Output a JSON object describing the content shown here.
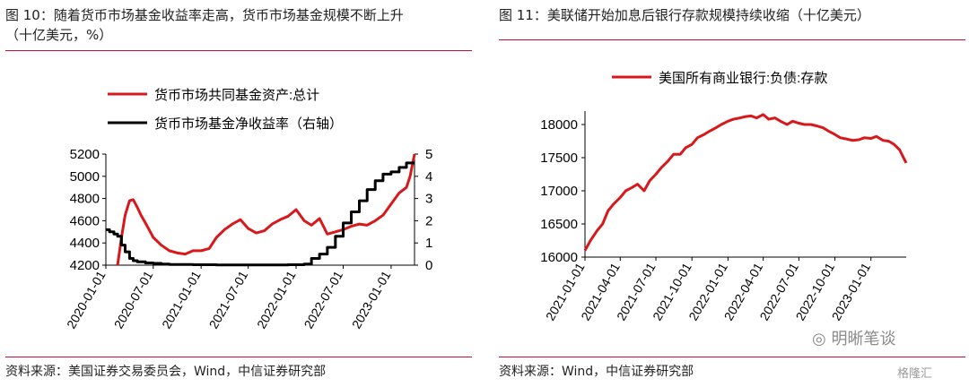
{
  "left": {
    "title_line1": "图 10：随着货币市场基金收益率走高，货币市场基金规模不断上升",
    "title_line2": "（十亿美元，%）",
    "source": "资料来源：美国证券交易委员会，Wind，中信证券研究部"
  },
  "right": {
    "title": "图 11：美联储开始加息后银行存款规模持续收缩（十亿美元）",
    "source": "资料来源：Wind，中信证券研究部"
  },
  "watermark": "明晰笔谈",
  "watermark2": "格隆汇",
  "colors": {
    "red": "#d7191c",
    "black": "#000000",
    "rule": "#c0103a"
  },
  "chart_data": [
    {
      "type": "line",
      "xlabel": "",
      "x_ticks": [
        "2020-01-01",
        "2020-07-01",
        "2021-01-01",
        "2021-07-01",
        "2022-01-01",
        "2022-07-01",
        "2023-01-01"
      ],
      "y_left": {
        "ylim": [
          4200,
          5200
        ],
        "ticks": [
          4200,
          4400,
          4600,
          4800,
          5000,
          5200
        ]
      },
      "y_right": {
        "ylim": [
          0,
          5
        ],
        "ticks": [
          0,
          1,
          2,
          3,
          4,
          5
        ]
      },
      "legend_position": "top-left",
      "series": [
        {
          "name": "货币市场共同基金资产:总计",
          "axis": "left",
          "color": "#d7191c",
          "x": [
            "2020-02-15",
            "2020-03-01",
            "2020-03-15",
            "2020-04-01",
            "2020-04-15",
            "2020-05-01",
            "2020-05-15",
            "2020-06-01",
            "2020-06-15",
            "2020-07-01",
            "2020-08-01",
            "2020-09-01",
            "2020-10-01",
            "2020-11-01",
            "2020-12-01",
            "2021-01-01",
            "2021-02-01",
            "2021-03-01",
            "2021-04-01",
            "2021-05-01",
            "2021-06-01",
            "2021-07-01",
            "2021-08-01",
            "2021-09-01",
            "2021-10-01",
            "2021-11-01",
            "2021-12-01",
            "2022-01-01",
            "2022-02-01",
            "2022-03-01",
            "2022-04-01",
            "2022-05-01",
            "2022-06-01",
            "2022-07-01",
            "2022-08-01",
            "2022-09-01",
            "2022-10-01",
            "2022-11-01",
            "2022-12-01",
            "2023-01-01",
            "2023-02-01",
            "2023-03-01",
            "2023-03-15",
            "2023-04-01"
          ],
          "values": [
            4200,
            4450,
            4650,
            4780,
            4790,
            4720,
            4650,
            4580,
            4520,
            4450,
            4380,
            4330,
            4310,
            4300,
            4330,
            4330,
            4350,
            4450,
            4520,
            4570,
            4610,
            4530,
            4490,
            4510,
            4570,
            4610,
            4640,
            4700,
            4600,
            4560,
            4620,
            4480,
            4500,
            4520,
            4550,
            4570,
            4560,
            4600,
            4650,
            4750,
            4850,
            4900,
            5000,
            5200
          ]
        },
        {
          "name": "货币市场基金净收益率（右轴）",
          "axis": "right",
          "color": "#000000",
          "x": [
            "2020-01-01",
            "2020-01-15",
            "2020-02-01",
            "2020-02-15",
            "2020-03-01",
            "2020-03-15",
            "2020-04-01",
            "2020-04-15",
            "2020-05-01",
            "2020-06-01",
            "2020-07-01",
            "2020-08-01",
            "2020-09-01",
            "2020-12-01",
            "2021-03-01",
            "2021-06-01",
            "2021-09-01",
            "2021-12-01",
            "2022-02-01",
            "2022-03-01",
            "2022-04-01",
            "2022-05-01",
            "2022-06-01",
            "2022-07-01",
            "2022-08-01",
            "2022-09-01",
            "2022-10-01",
            "2022-11-01",
            "2022-12-01",
            "2023-01-01",
            "2023-02-01",
            "2023-03-01",
            "2023-04-01"
          ],
          "values": [
            1.6,
            1.5,
            1.4,
            1.3,
            0.9,
            0.6,
            0.3,
            0.2,
            0.15,
            0.1,
            0.08,
            0.05,
            0.03,
            0.02,
            0.01,
            0.01,
            0.01,
            0.02,
            0.05,
            0.3,
            0.5,
            0.8,
            1.3,
            1.9,
            2.4,
            2.9,
            3.4,
            3.8,
            4.1,
            4.2,
            4.4,
            4.6,
            4.6
          ]
        }
      ]
    },
    {
      "type": "line",
      "xlabel": "",
      "x_ticks": [
        "2021-01-01",
        "2021-04-01",
        "2021-07-01",
        "2021-10-01",
        "2022-01-01",
        "2022-04-01",
        "2022-07-01",
        "2022-10-01",
        "2023-01-01"
      ],
      "ylim": [
        16000,
        18000
      ],
      "y_ticks": [
        16000,
        16500,
        17000,
        17500,
        18000
      ],
      "legend_position": "top-left",
      "series": [
        {
          "name": "美国所有商业银行:负债:存款",
          "color": "#d7191c",
          "x": [
            "2021-01-01",
            "2021-01-15",
            "2021-02-01",
            "2021-02-15",
            "2021-03-01",
            "2021-03-15",
            "2021-04-01",
            "2021-04-15",
            "2021-05-01",
            "2021-05-15",
            "2021-06-01",
            "2021-06-15",
            "2021-07-01",
            "2021-07-15",
            "2021-08-01",
            "2021-08-15",
            "2021-09-01",
            "2021-09-15",
            "2021-10-01",
            "2021-10-15",
            "2021-11-01",
            "2021-11-15",
            "2021-12-01",
            "2021-12-15",
            "2022-01-01",
            "2022-01-15",
            "2022-02-01",
            "2022-02-15",
            "2022-03-01",
            "2022-03-15",
            "2022-04-01",
            "2022-04-15",
            "2022-05-01",
            "2022-05-15",
            "2022-06-01",
            "2022-06-15",
            "2022-07-01",
            "2022-07-15",
            "2022-08-01",
            "2022-08-15",
            "2022-09-01",
            "2022-09-15",
            "2022-10-01",
            "2022-10-15",
            "2022-11-01",
            "2022-11-15",
            "2022-12-01",
            "2022-12-15",
            "2023-01-01",
            "2023-01-15",
            "2023-02-01",
            "2023-02-15",
            "2023-03-01",
            "2023-03-15",
            "2023-04-01"
          ],
          "values": [
            16100,
            16250,
            16400,
            16500,
            16700,
            16800,
            16900,
            17000,
            17050,
            17100,
            17000,
            17150,
            17250,
            17350,
            17450,
            17550,
            17550,
            17650,
            17700,
            17800,
            17850,
            17900,
            17950,
            18000,
            18050,
            18080,
            18100,
            18120,
            18130,
            18100,
            18150,
            18080,
            18100,
            18050,
            18000,
            18050,
            18020,
            18000,
            18000,
            17980,
            17950,
            17900,
            17850,
            17800,
            17780,
            17760,
            17770,
            17800,
            17790,
            17820,
            17760,
            17750,
            17700,
            17620,
            17420
          ]
        }
      ]
    }
  ]
}
